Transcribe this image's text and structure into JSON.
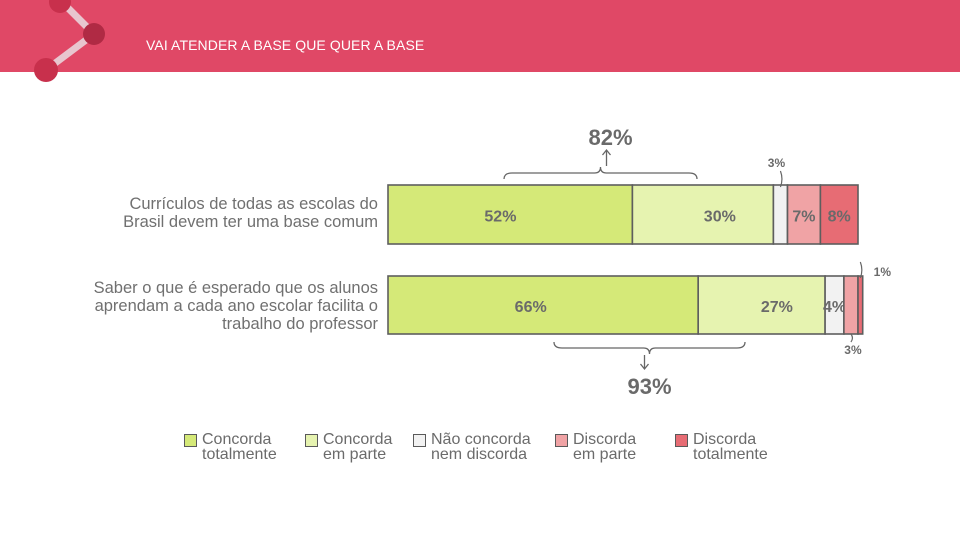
{
  "header": {
    "title": "VAI ATENDER A BASE QUE QUER A BASE",
    "bar_color": "#e04866"
  },
  "chart_data": {
    "type": "bar",
    "orientation": "horizontal",
    "stacked": true,
    "categories": [
      "Currículos de todas as escolas do\nBrasil devem ter uma base comum",
      "Saber o que é esperado que os alunos\naprendam a cada ano escolar facilita o\ntrabalho do professor"
    ],
    "series": [
      {
        "name": "Concorda\ntotalmente",
        "color": "#d5e978",
        "values": [
          52,
          66
        ],
        "labels": [
          "52%",
          "66%"
        ]
      },
      {
        "name": "Concorda\nem parte",
        "color": "#e6f3b0",
        "values": [
          30,
          27
        ],
        "labels": [
          "30%",
          "27%"
        ]
      },
      {
        "name": "Não concorda\nnem discorda",
        "color": "#f2f2f2",
        "values": [
          3,
          4
        ],
        "labels": [
          "3%",
          "4%"
        ]
      },
      {
        "name": "Discorda\nem parte",
        "color": "#f0a3a5",
        "values": [
          7,
          3
        ],
        "labels": [
          "7%",
          "3%"
        ]
      },
      {
        "name": "Discorda\ntotalmente",
        "color": "#e76c74",
        "values": [
          8,
          1
        ],
        "labels": [
          "8%",
          "1%"
        ]
      }
    ],
    "totals": [
      {
        "row": 0,
        "label": "82%",
        "value": 82,
        "position": "above"
      },
      {
        "row": 1,
        "label": "93%",
        "value": 93,
        "position": "below"
      }
    ],
    "xlim": [
      0,
      100
    ],
    "legend_position": "bottom",
    "grid": false
  }
}
